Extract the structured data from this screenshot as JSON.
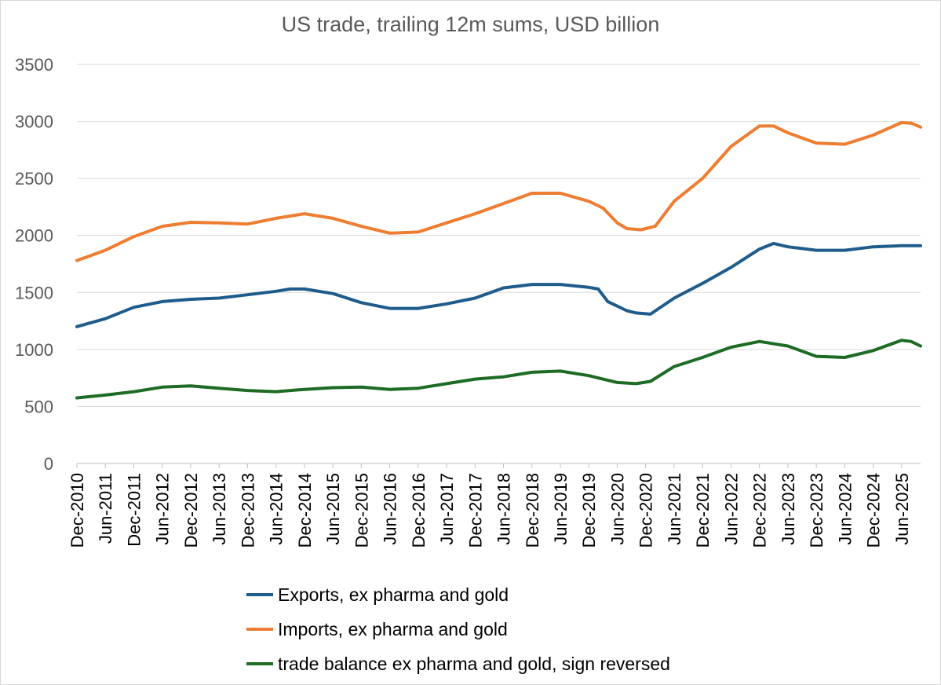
{
  "chart_data": {
    "type": "line",
    "title": "US trade, trailing 12m sums, USD billion",
    "xlabel": "",
    "ylabel": "",
    "ylim": [
      0,
      3500
    ],
    "yticks": [
      0,
      500,
      1000,
      1500,
      2000,
      2500,
      3000,
      3500
    ],
    "grid": "horizontal",
    "legend_position": "bottom",
    "x_tick_labels": [
      "Dec-2010",
      "Jun-2011",
      "Dec-2011",
      "Jun-2012",
      "Dec-2012",
      "Jun-2013",
      "Dec-2013",
      "Jun-2014",
      "Dec-2014",
      "Jun-2015",
      "Dec-2015",
      "Jun-2016",
      "Dec-2016",
      "Jun-2017",
      "Dec-2017",
      "Jun-2018",
      "Dec-2018",
      "Jun-2019",
      "Dec-2019",
      "Jun-2020",
      "Dec-2020",
      "Jun-2021",
      "Dec-2021",
      "Jun-2022",
      "Dec-2022",
      "Jun-2023",
      "Dec-2023",
      "Jun-2024",
      "Dec-2024",
      "Jun-2025"
    ],
    "x_start": "Dec-2010",
    "x_end": "Oct-2025",
    "series": [
      {
        "name": "Exports, ex pharma and gold",
        "color": "#1f5c8b",
        "points": [
          [
            "Dec-2010",
            1200
          ],
          [
            "Jun-2011",
            1270
          ],
          [
            "Dec-2011",
            1370
          ],
          [
            "Jun-2012",
            1420
          ],
          [
            "Dec-2012",
            1440
          ],
          [
            "Jun-2013",
            1450
          ],
          [
            "Dec-2013",
            1480
          ],
          [
            "Jun-2014",
            1510
          ],
          [
            "Sep-2014",
            1530
          ],
          [
            "Dec-2014",
            1530
          ],
          [
            "Jun-2015",
            1490
          ],
          [
            "Dec-2015",
            1410
          ],
          [
            "Jun-2016",
            1360
          ],
          [
            "Dec-2016",
            1360
          ],
          [
            "Jun-2017",
            1400
          ],
          [
            "Dec-2017",
            1450
          ],
          [
            "Jun-2018",
            1540
          ],
          [
            "Dec-2018",
            1570
          ],
          [
            "Jun-2019",
            1570
          ],
          [
            "Dec-2019",
            1545
          ],
          [
            "Feb-2020",
            1530
          ],
          [
            "Apr-2020",
            1420
          ],
          [
            "Jun-2020",
            1380
          ],
          [
            "Aug-2020",
            1340
          ],
          [
            "Oct-2020",
            1320
          ],
          [
            "Jan-2021",
            1310
          ],
          [
            "Jun-2021",
            1450
          ],
          [
            "Dec-2021",
            1580
          ],
          [
            "Jun-2022",
            1720
          ],
          [
            "Dec-2022",
            1880
          ],
          [
            "Mar-2023",
            1930
          ],
          [
            "Jun-2023",
            1900
          ],
          [
            "Dec-2023",
            1870
          ],
          [
            "Jun-2024",
            1870
          ],
          [
            "Dec-2024",
            1900
          ],
          [
            "Jun-2025",
            1910
          ],
          [
            "Oct-2025",
            1910
          ]
        ]
      },
      {
        "name": "Imports, ex pharma and gold",
        "color": "#ed7d31",
        "points": [
          [
            "Dec-2010",
            1780
          ],
          [
            "Jun-2011",
            1870
          ],
          [
            "Dec-2011",
            1990
          ],
          [
            "Jun-2012",
            2080
          ],
          [
            "Dec-2012",
            2115
          ],
          [
            "Jun-2013",
            2110
          ],
          [
            "Dec-2013",
            2100
          ],
          [
            "Jun-2014",
            2150
          ],
          [
            "Dec-2014",
            2190
          ],
          [
            "Jun-2015",
            2150
          ],
          [
            "Dec-2015",
            2080
          ],
          [
            "Jun-2016",
            2020
          ],
          [
            "Dec-2016",
            2030
          ],
          [
            "Jun-2017",
            2110
          ],
          [
            "Dec-2017",
            2190
          ],
          [
            "Jun-2018",
            2280
          ],
          [
            "Dec-2018",
            2370
          ],
          [
            "Jun-2019",
            2370
          ],
          [
            "Dec-2019",
            2300
          ],
          [
            "Mar-2020",
            2240
          ],
          [
            "Jun-2020",
            2110
          ],
          [
            "Aug-2020",
            2060
          ],
          [
            "Nov-2020",
            2050
          ],
          [
            "Feb-2021",
            2080
          ],
          [
            "Jun-2021",
            2300
          ],
          [
            "Dec-2021",
            2500
          ],
          [
            "Jun-2022",
            2780
          ],
          [
            "Dec-2022",
            2960
          ],
          [
            "Mar-2023",
            2960
          ],
          [
            "Jun-2023",
            2900
          ],
          [
            "Dec-2023",
            2810
          ],
          [
            "Jun-2024",
            2800
          ],
          [
            "Dec-2024",
            2880
          ],
          [
            "Jun-2025",
            2990
          ],
          [
            "Aug-2025",
            2985
          ],
          [
            "Oct-2025",
            2950
          ]
        ]
      },
      {
        "name": "trade balance ex pharma and gold, sign reversed",
        "color": "#1e6b25",
        "points": [
          [
            "Dec-2010",
            575
          ],
          [
            "Jun-2011",
            600
          ],
          [
            "Dec-2011",
            630
          ],
          [
            "Jun-2012",
            670
          ],
          [
            "Dec-2012",
            680
          ],
          [
            "Jun-2013",
            660
          ],
          [
            "Dec-2013",
            640
          ],
          [
            "Jun-2014",
            630
          ],
          [
            "Dec-2014",
            650
          ],
          [
            "Jun-2015",
            665
          ],
          [
            "Dec-2015",
            670
          ],
          [
            "Jun-2016",
            650
          ],
          [
            "Dec-2016",
            660
          ],
          [
            "Jun-2017",
            700
          ],
          [
            "Dec-2017",
            740
          ],
          [
            "Jun-2018",
            760
          ],
          [
            "Dec-2018",
            800
          ],
          [
            "Jun-2019",
            810
          ],
          [
            "Dec-2019",
            770
          ],
          [
            "Jun-2020",
            710
          ],
          [
            "Oct-2020",
            700
          ],
          [
            "Jan-2021",
            720
          ],
          [
            "Jun-2021",
            850
          ],
          [
            "Dec-2021",
            930
          ],
          [
            "Jun-2022",
            1020
          ],
          [
            "Dec-2022",
            1070
          ],
          [
            "Jun-2023",
            1030
          ],
          [
            "Dec-2023",
            940
          ],
          [
            "Jun-2024",
            930
          ],
          [
            "Dec-2024",
            990
          ],
          [
            "Jun-2025",
            1080
          ],
          [
            "Aug-2025",
            1070
          ],
          [
            "Oct-2025",
            1030
          ]
        ]
      }
    ]
  }
}
